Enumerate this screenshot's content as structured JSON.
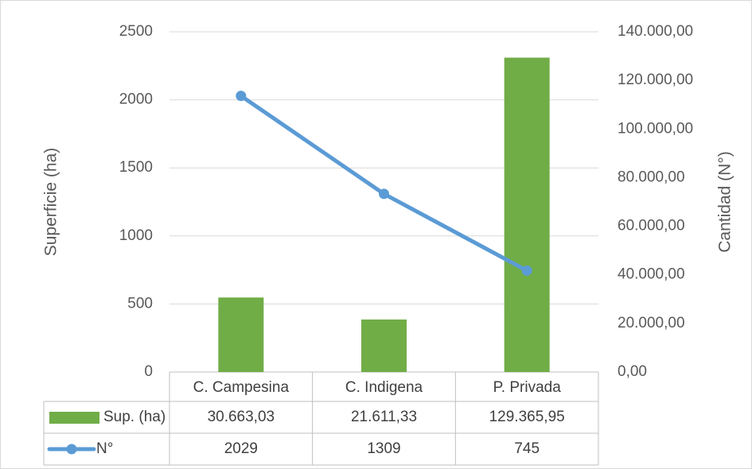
{
  "chart_data": {
    "type": "combo",
    "y_label": "Superficie (ha)",
    "y2_label": "Cantidad (N°)",
    "categories": [
      "C. Campesina",
      "C. Indigena",
      "P. Privada"
    ],
    "ylim": [
      0,
      2500
    ],
    "yticks": [
      0,
      500,
      1000,
      1500,
      2000,
      2500
    ],
    "y2lim": [
      0,
      140000
    ],
    "y2ticks": [
      {
        "value": 0,
        "label": "0,00"
      },
      {
        "value": 20000,
        "label": "20.000,00"
      },
      {
        "value": 40000,
        "label": "40.000,00"
      },
      {
        "value": 60000,
        "label": "60.000,00"
      },
      {
        "value": 80000,
        "label": "80.000,00"
      },
      {
        "value": 100000,
        "label": "100.000,00"
      },
      {
        "value": 120000,
        "label": "120.000,00"
      },
      {
        "value": 140000,
        "label": "140.000,00"
      }
    ],
    "grid": true,
    "series": [
      {
        "name": "Sup. (ha)",
        "type": "bar",
        "axis": "y2",
        "color": "#70ad47",
        "values": [
          30663.03,
          21611.33,
          129365.95
        ],
        "value_labels": [
          "30.663,03",
          "21.611,33",
          "129.365,95"
        ]
      },
      {
        "name": "N°",
        "type": "line",
        "color": "#5b9bd5",
        "values": [
          2029,
          1309,
          745
        ]
      }
    ]
  }
}
